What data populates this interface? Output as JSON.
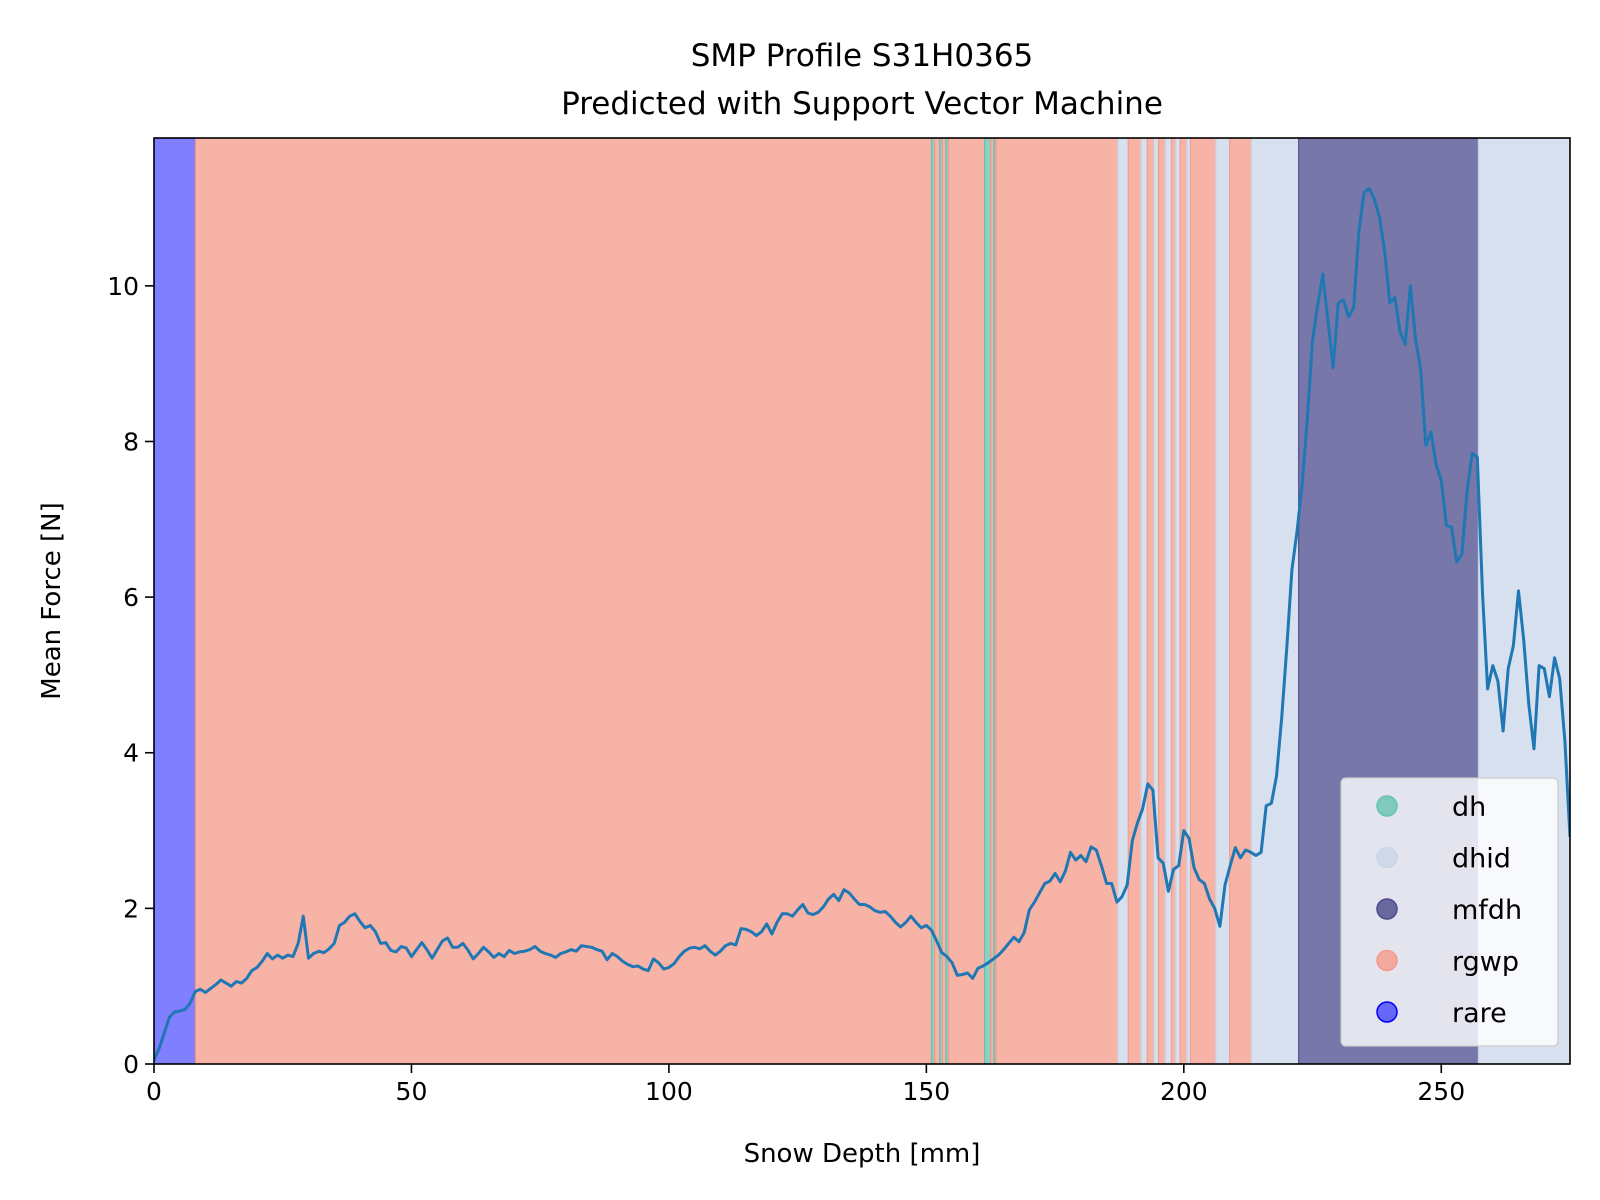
{
  "chart_data": {
    "type": "line",
    "title": "SMP Profile S31H0365",
    "subtitle": "Predicted with Support Vector Machine",
    "xlabel": "Snow Depth [mm]",
    "ylabel": "Mean Force [N]",
    "xlim": [
      0,
      275
    ],
    "ylim": [
      0,
      11.9
    ],
    "x_ticks": [
      0,
      50,
      100,
      150,
      200,
      250
    ],
    "y_ticks": [
      0,
      2,
      4,
      6,
      8,
      10
    ],
    "grid": false,
    "legend_position": "lower-right",
    "classes": [
      {
        "name": "dh",
        "color": "#66c2b0"
      },
      {
        "name": "dhid",
        "color": "#c9d6e8"
      },
      {
        "name": "mfdh",
        "color": "#4a4a8c"
      },
      {
        "name": "rgwp",
        "color": "#f59a8a"
      },
      {
        "name": "rare",
        "color": "#0000ff"
      }
    ],
    "segments": [
      {
        "start": 0,
        "end": 8,
        "class": "rare"
      },
      {
        "start": 8,
        "end": 151,
        "class": "rgwp"
      },
      {
        "start": 151,
        "end": 151.6,
        "class": "dh"
      },
      {
        "start": 151.6,
        "end": 152.6,
        "class": "rgwp"
      },
      {
        "start": 152.6,
        "end": 153.1,
        "class": "dh"
      },
      {
        "start": 153.1,
        "end": 153.8,
        "class": "rgwp"
      },
      {
        "start": 153.8,
        "end": 154.3,
        "class": "dh"
      },
      {
        "start": 154.3,
        "end": 161.3,
        "class": "rgwp"
      },
      {
        "start": 161.3,
        "end": 162.5,
        "class": "dh"
      },
      {
        "start": 162.5,
        "end": 163.1,
        "class": "rgwp"
      },
      {
        "start": 163.1,
        "end": 163.5,
        "class": "dh"
      },
      {
        "start": 163.5,
        "end": 187.2,
        "class": "rgwp"
      },
      {
        "start": 187.2,
        "end": 189.2,
        "class": "dhid"
      },
      {
        "start": 189.2,
        "end": 191.7,
        "class": "rgwp"
      },
      {
        "start": 191.7,
        "end": 192.9,
        "class": "dhid"
      },
      {
        "start": 192.9,
        "end": 194.2,
        "class": "rgwp"
      },
      {
        "start": 194.2,
        "end": 195.1,
        "class": "dhid"
      },
      {
        "start": 195.1,
        "end": 196.4,
        "class": "rgwp"
      },
      {
        "start": 196.4,
        "end": 197.6,
        "class": "dhid"
      },
      {
        "start": 197.6,
        "end": 198.4,
        "class": "rgwp"
      },
      {
        "start": 198.4,
        "end": 199.3,
        "class": "dhid"
      },
      {
        "start": 199.3,
        "end": 200.6,
        "class": "rgwp"
      },
      {
        "start": 200.6,
        "end": 201.3,
        "class": "dhid"
      },
      {
        "start": 201.3,
        "end": 206.2,
        "class": "rgwp"
      },
      {
        "start": 206.2,
        "end": 208.9,
        "class": "dhid"
      },
      {
        "start": 208.9,
        "end": 213.1,
        "class": "rgwp"
      },
      {
        "start": 213.1,
        "end": 222.3,
        "class": "dhid"
      },
      {
        "start": 222.3,
        "end": 257.2,
        "class": "mfdh"
      },
      {
        "start": 257.2,
        "end": 275,
        "class": "dhid"
      }
    ],
    "series": [
      {
        "x": [
          0,
          1,
          2,
          3,
          4,
          5,
          6,
          7,
          8,
          9,
          10,
          11,
          12,
          13,
          14,
          15,
          16,
          17,
          18,
          19,
          20,
          21,
          22,
          23,
          24,
          25,
          26,
          27,
          28,
          29,
          30,
          31,
          32,
          33,
          34,
          35,
          36,
          37,
          38,
          39,
          40,
          41,
          42,
          43,
          44,
          45,
          46,
          47,
          48,
          49,
          50,
          51,
          52,
          53,
          54,
          55,
          56,
          57,
          58,
          59,
          60,
          61,
          62,
          63,
          64,
          65,
          66,
          67,
          68,
          69,
          70,
          71,
          72,
          73,
          74,
          75,
          76,
          77,
          78,
          79,
          80,
          81,
          82,
          83,
          84,
          85,
          86,
          87,
          88,
          89,
          90,
          91,
          92,
          93,
          94,
          95,
          96,
          97,
          98,
          99,
          100,
          101,
          102,
          103,
          104,
          105,
          106,
          107,
          108,
          109,
          110,
          111,
          112,
          113,
          114,
          115,
          116,
          117,
          118,
          119,
          120,
          121,
          122,
          123,
          124,
          125,
          126,
          127,
          128,
          129,
          130,
          131,
          132,
          133,
          134,
          135,
          136,
          137,
          138,
          139,
          140,
          141,
          142,
          143,
          144,
          145,
          146,
          147,
          148,
          149,
          150,
          151,
          152,
          153,
          154,
          155,
          156,
          157,
          158,
          159,
          160,
          161,
          162,
          163,
          164,
          165,
          166,
          167,
          168,
          169,
          170,
          171,
          172,
          173,
          174,
          175,
          176,
          177,
          178,
          179,
          180,
          181,
          182,
          183,
          184,
          185,
          186,
          187,
          188,
          189,
          190,
          191,
          192,
          193,
          194,
          195,
          196,
          197,
          198,
          199,
          200,
          201,
          202,
          203,
          204,
          205,
          206,
          207,
          208,
          209,
          210,
          211,
          212,
          213,
          214,
          215,
          216,
          217,
          218,
          219,
          220,
          221,
          222,
          223,
          224,
          225,
          226,
          227,
          228,
          229,
          230,
          231,
          232,
          233,
          234,
          235,
          236,
          237,
          238,
          239,
          240,
          241,
          242,
          243,
          244,
          245,
          246,
          247,
          248,
          249,
          250,
          251,
          252,
          253,
          254,
          255,
          256,
          257,
          258,
          259,
          260,
          261,
          262,
          263,
          264,
          265,
          266,
          267,
          268,
          269,
          270,
          271,
          272,
          273,
          274,
          275
        ],
        "y": [
          0.05,
          0.2,
          0.4,
          0.6,
          0.67,
          0.68,
          0.7,
          0.78,
          0.93,
          0.96,
          0.92,
          0.97,
          1.02,
          1.08,
          1.04,
          1.0,
          1.06,
          1.04,
          1.1,
          1.2,
          1.24,
          1.32,
          1.42,
          1.35,
          1.4,
          1.36,
          1.4,
          1.38,
          1.55,
          1.9,
          1.36,
          1.42,
          1.45,
          1.43,
          1.48,
          1.55,
          1.78,
          1.82,
          1.9,
          1.93,
          1.83,
          1.75,
          1.78,
          1.7,
          1.55,
          1.56,
          1.46,
          1.44,
          1.51,
          1.49,
          1.38,
          1.47,
          1.56,
          1.47,
          1.36,
          1.47,
          1.58,
          1.62,
          1.5,
          1.5,
          1.55,
          1.46,
          1.35,
          1.42,
          1.5,
          1.44,
          1.37,
          1.42,
          1.38,
          1.46,
          1.42,
          1.44,
          1.45,
          1.47,
          1.51,
          1.45,
          1.42,
          1.4,
          1.37,
          1.42,
          1.44,
          1.47,
          1.45,
          1.52,
          1.51,
          1.5,
          1.47,
          1.45,
          1.34,
          1.42,
          1.38,
          1.32,
          1.28,
          1.25,
          1.26,
          1.22,
          1.2,
          1.35,
          1.3,
          1.22,
          1.24,
          1.29,
          1.38,
          1.45,
          1.49,
          1.5,
          1.48,
          1.52,
          1.45,
          1.4,
          1.45,
          1.52,
          1.55,
          1.53,
          1.74,
          1.73,
          1.7,
          1.65,
          1.7,
          1.8,
          1.67,
          1.82,
          1.93,
          1.93,
          1.9,
          1.98,
          2.05,
          1.94,
          1.92,
          1.95,
          2.02,
          2.12,
          2.18,
          2.1,
          2.24,
          2.2,
          2.12,
          2.05,
          2.05,
          2.02,
          1.97,
          1.95,
          1.96,
          1.9,
          1.82,
          1.76,
          1.82,
          1.9,
          1.82,
          1.75,
          1.78,
          1.72,
          1.58,
          1.43,
          1.38,
          1.3,
          1.14,
          1.15,
          1.17,
          1.1,
          1.23,
          1.26,
          1.3,
          1.35,
          1.4,
          1.47,
          1.55,
          1.63,
          1.57,
          1.69,
          1.98,
          2.08,
          2.2,
          2.32,
          2.35,
          2.45,
          2.34,
          2.48,
          2.72,
          2.62,
          2.68,
          2.6,
          2.79,
          2.75,
          2.55,
          2.32,
          2.32,
          2.08,
          2.15,
          2.3,
          2.87,
          3.1,
          3.28,
          3.6,
          3.52,
          2.65,
          2.58,
          2.22,
          2.5,
          2.55,
          3.0,
          2.9,
          2.52,
          2.37,
          2.32,
          2.12,
          2.0,
          1.77,
          2.3,
          2.55,
          2.78,
          2.65,
          2.75,
          2.72,
          2.68,
          2.72,
          3.32,
          3.35,
          3.7,
          4.45,
          5.35,
          6.35,
          6.85,
          7.45,
          8.3,
          9.3,
          9.75,
          10.15,
          9.55,
          8.95,
          9.78,
          9.82,
          9.6,
          9.72,
          10.7,
          11.2,
          11.25,
          11.12,
          10.88,
          10.45,
          9.78,
          9.85,
          9.4,
          9.25,
          10.0,
          9.32,
          8.92,
          7.95,
          8.12,
          7.7,
          7.5,
          6.92,
          6.9,
          6.45,
          6.55,
          7.35,
          7.85,
          7.8,
          6.05,
          4.82,
          5.12,
          4.92,
          4.28,
          5.08,
          5.38,
          6.08,
          5.45,
          4.62,
          4.05,
          5.12,
          5.08,
          4.72,
          5.22,
          4.95,
          4.15,
          2.92
        ]
      }
    ]
  }
}
